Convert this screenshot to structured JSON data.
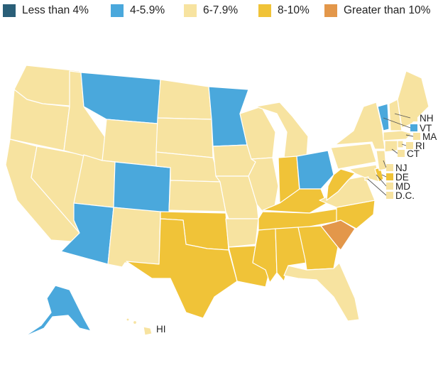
{
  "legend": [
    {
      "label": "Less than 4%",
      "color": "#2a5f78"
    },
    {
      "label": "4-5.9%",
      "color": "#4aa8dc"
    },
    {
      "label": "6-7.9%",
      "color": "#f7e3a0"
    },
    {
      "label": "8-10%",
      "color": "#f0c338"
    },
    {
      "label": "Greater than 10%",
      "color": "#e3974a"
    }
  ],
  "state_labels": {
    "nh": "NH",
    "vt": "VT",
    "ma": "MA",
    "ri": "RI",
    "ct": "CT",
    "nj": "NJ",
    "de": "DE",
    "md": "MD",
    "dc": "D.C.",
    "hi": "HI"
  },
  "state_categories": {
    "WA": "6-7.9%",
    "OR": "6-7.9%",
    "CA": "6-7.9%",
    "NV": "6-7.9%",
    "ID": "6-7.9%",
    "MT": "4-5.9%",
    "WY": "6-7.9%",
    "UT": "6-7.9%",
    "AZ": "4-5.9%",
    "CO": "4-5.9%",
    "NM": "6-7.9%",
    "ND": "6-7.9%",
    "SD": "6-7.9%",
    "NE": "6-7.9%",
    "KS": "6-7.9%",
    "OK": "8-10%",
    "TX": "8-10%",
    "MN": "4-5.9%",
    "IA": "6-7.9%",
    "MO": "6-7.9%",
    "AR": "6-7.9%",
    "LA": "8-10%",
    "WI": "6-7.9%",
    "IL": "6-7.9%",
    "MI": "6-7.9%",
    "IN": "8-10%",
    "OH": "4-5.9%",
    "KY": "8-10%",
    "TN": "8-10%",
    "MS": "8-10%",
    "AL": "8-10%",
    "GA": "8-10%",
    "FL": "6-7.9%",
    "SC": "Greater than 10%",
    "NC": "8-10%",
    "VA": "6-7.9%",
    "WV": "8-10%",
    "PA": "6-7.9%",
    "NY": "6-7.9%",
    "VT": "4-5.9%",
    "NH": "6-7.9%",
    "ME": "6-7.9%",
    "MA": "6-7.9%",
    "RI": "6-7.9%",
    "CT": "6-7.9%",
    "NJ": "6-7.9%",
    "DE": "8-10%",
    "MD": "6-7.9%",
    "DC": "6-7.9%",
    "AK": "4-5.9%",
    "HI": "6-7.9%"
  }
}
